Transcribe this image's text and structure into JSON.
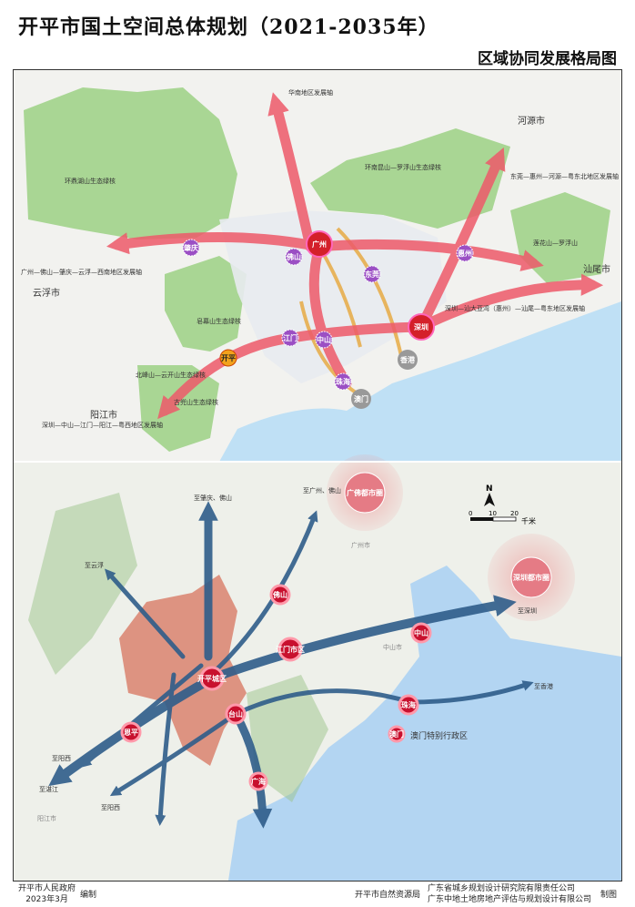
{
  "title": "开平市国土空间总体规划（2021-2035年）",
  "subtitle": "区域协同发展格局图",
  "upper_map": {
    "cities": [
      "河源市",
      "汕尾市",
      "云浮市",
      "阳江市"
    ],
    "axes": [
      "华南地区发展轴",
      "东莞—惠州—河源—粤东北地区发展轴",
      "广州—佛山—肇庆—云浮—西南地区发展轴",
      "深圳—汕大亚湾（惠州）—汕尾—粤东地区发展轴",
      "深圳—中山—江门—阳江—粤西地区发展轴"
    ],
    "nodes": {
      "guangzhou": "广州",
      "shenzhen": "深圳",
      "hongkong": "香港",
      "macau": "澳门",
      "zhuhai": "珠海",
      "kaiping": "开平",
      "foshan": "佛山",
      "zhaoqing": "肇庆",
      "dongguan": "东莞",
      "huizhou": "惠州",
      "jiangmen": "江门",
      "zhongshan": "中山"
    },
    "ecology": [
      "环鼎湖山生态绿核",
      "环南昆山—罗浮山生态绿核",
      "莲花山—罗浮山",
      "皂幕山生态绿核",
      "古兜山生态绿核",
      "北峰山—云开山生态绿核"
    ],
    "colors": {
      "axis": "#ee5a6a",
      "green": "#a9d694",
      "sea": "#bfe0f5",
      "core": "#d4202a",
      "sub": "#9b4fc4",
      "corridor": "#e6a63a"
    }
  },
  "lower_map": {
    "metro": [
      "广佛都市圈",
      "深圳都市圈"
    ],
    "nodes": [
      "佛山",
      "中山",
      "江门市区",
      "开平城区",
      "台山",
      "恩平",
      "珠海",
      "澳门",
      "广海"
    ],
    "directions": [
      "至广州、佛山",
      "至肇庆、佛山",
      "至云浮",
      "至深圳",
      "至香港",
      "至阳西",
      "至湛江",
      "至阳西"
    ],
    "region_labels": [
      "中山市",
      "广州市",
      "澳门特别行政区",
      "阳江市"
    ],
    "compass": "N",
    "scale": {
      "ticks": [
        "0",
        "10",
        "20"
      ],
      "unit": "千米"
    },
    "colors": {
      "arrow": "#2f5d8a",
      "node": "#c8102e",
      "city_area": "#d9826f",
      "sea": "#b3d5f2"
    }
  },
  "footer": {
    "gov": "开平市人民政府",
    "date": "2023年3月",
    "compile": "编制",
    "bureau": "开平市自然资源局",
    "org1": "广东省城乡规划设计研究院有限责任公司",
    "org2": "广东中地土地房地产评估与规划设计有限公司",
    "make": "制图"
  }
}
